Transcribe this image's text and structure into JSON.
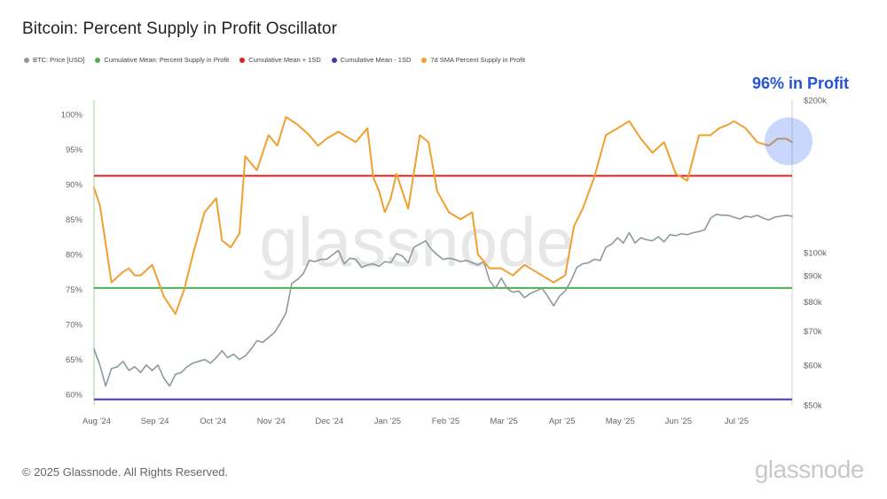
{
  "header": {
    "title": "Bitcoin: Percent Supply in Profit Oscillator"
  },
  "legend": [
    {
      "label": "BTC: Price [USD]",
      "color": "#8c9a9e"
    },
    {
      "label": "Cumulative Mean: Percent Supply in Profit",
      "color": "#4caf50"
    },
    {
      "label": "Cumulative Mean + 1SD",
      "color": "#e02020"
    },
    {
      "label": "Cumulative Mean - 1SD",
      "color": "#4a35a8"
    },
    {
      "label": "7d SMA Percent Supply in Profit",
      "color": "#f0a030"
    }
  ],
  "callout": "96% in Profit",
  "watermark": "glassnode",
  "footer": {
    "copyright": "© 2025 Glassnode. All Rights Reserved.",
    "logo": "glassnode"
  },
  "chart_data": {
    "type": "line",
    "title": "Bitcoin: Percent Supply in Profit Oscillator",
    "x_tick_labels": [
      "Aug '24",
      "Sep '24",
      "Oct '24",
      "Nov '24",
      "Dec '24",
      "Jan '25",
      "Feb '25",
      "Mar '25",
      "Apr '25",
      "May '25",
      "Jun '25",
      "Jul '25"
    ],
    "y_left": {
      "ticks": [
        60,
        65,
        70,
        75,
        80,
        85,
        90,
        95,
        100
      ],
      "tick_labels": [
        "60%",
        "65%",
        "70%",
        "75%",
        "80%",
        "85%",
        "90%",
        "95%",
        "100%"
      ],
      "range": [
        58.5,
        102
      ]
    },
    "y_right": {
      "scale": "log",
      "ticks": [
        50000,
        60000,
        70000,
        80000,
        90000,
        100000,
        200000
      ],
      "tick_labels": [
        "$50k",
        "$60k",
        "$70k",
        "$80k",
        "$90k",
        "$100k",
        "$200k"
      ],
      "range": [
        50000,
        200000
      ]
    },
    "horizontal_lines": [
      {
        "name": "Cumulative Mean: Percent Supply in Profit",
        "value": 75.2,
        "color": "#4caf50"
      },
      {
        "name": "Cumulative Mean + 1SD",
        "value": 91.2,
        "color": "#e02020"
      },
      {
        "name": "Cumulative Mean - 1SD",
        "value": 59.3,
        "color": "#4a35a8"
      }
    ],
    "series": [
      {
        "name": "7d SMA Percent Supply in Profit",
        "axis": "left",
        "color": "#f0a030",
        "x": [
          0,
          0.1,
          0.3,
          0.5,
          0.6,
          0.7,
          0.8,
          1.0,
          1.2,
          1.4,
          1.55,
          1.7,
          1.9,
          2.1,
          2.2,
          2.35,
          2.5,
          2.6,
          2.8,
          3.0,
          3.15,
          3.3,
          3.5,
          3.7,
          3.85,
          4.0,
          4.2,
          4.5,
          4.7,
          4.8,
          4.9,
          5.0,
          5.1,
          5.2,
          5.4,
          5.6,
          5.75,
          5.9,
          6.1,
          6.3,
          6.5,
          6.6,
          6.8,
          7.0,
          7.2,
          7.4,
          7.7,
          7.9,
          8.1,
          8.25,
          8.4,
          8.6,
          8.8,
          9.0,
          9.2,
          9.4,
          9.6,
          9.8,
          10.0,
          10.2,
          10.4,
          10.6,
          10.75,
          10.9,
          11.0,
          11.2,
          11.4,
          11.6,
          11.75,
          11.9,
          12.0
        ],
        "values": [
          89.5,
          87.0,
          76.0,
          77.5,
          78.0,
          77.0,
          77.0,
          78.5,
          74.0,
          71.5,
          75.0,
          80.0,
          86.0,
          88.0,
          82.0,
          81.0,
          83.0,
          94.0,
          92.0,
          97.0,
          95.5,
          99.6,
          98.5,
          97.0,
          95.5,
          96.5,
          97.5,
          96.0,
          98.0,
          91.0,
          89.0,
          86.0,
          88.0,
          91.5,
          86.5,
          97.0,
          96.0,
          89.0,
          86.0,
          85.0,
          86.0,
          80.0,
          78.0,
          78.0,
          77.0,
          78.5,
          77.0,
          76.0,
          77.0,
          84.0,
          86.5,
          91.0,
          97.0,
          98.0,
          99.0,
          96.5,
          94.5,
          96.0,
          91.5,
          90.5,
          97.0,
          97.0,
          98.0,
          98.5,
          99.0,
          98.0,
          96.0,
          95.5,
          96.5,
          96.5,
          96.0
        ]
      },
      {
        "name": "BTC: Price [USD]",
        "axis": "right",
        "color": "#8c9a9e",
        "x": [
          0,
          0.1,
          0.2,
          0.3,
          0.4,
          0.5,
          0.6,
          0.7,
          0.8,
          0.9,
          1.0,
          1.1,
          1.2,
          1.3,
          1.4,
          1.5,
          1.6,
          1.7,
          1.8,
          1.9,
          2.0,
          2.1,
          2.2,
          2.3,
          2.4,
          2.5,
          2.6,
          2.7,
          2.8,
          2.9,
          3.0,
          3.1,
          3.2,
          3.3,
          3.4,
          3.5,
          3.6,
          3.7,
          3.8,
          3.9,
          4.0,
          4.1,
          4.2,
          4.3,
          4.4,
          4.5,
          4.6,
          4.7,
          4.8,
          4.9,
          5.0,
          5.1,
          5.2,
          5.3,
          5.4,
          5.5,
          5.6,
          5.7,
          5.8,
          5.9,
          6.0,
          6.1,
          6.2,
          6.3,
          6.4,
          6.5,
          6.6,
          6.7,
          6.8,
          6.9,
          7.0,
          7.1,
          7.2,
          7.3,
          7.4,
          7.5,
          7.6,
          7.7,
          7.8,
          7.9,
          8.0,
          8.1,
          8.2,
          8.3,
          8.4,
          8.5,
          8.6,
          8.7,
          8.8,
          8.9,
          9.0,
          9.1,
          9.2,
          9.3,
          9.4,
          9.5,
          9.6,
          9.7,
          9.8,
          9.9,
          10.0,
          10.1,
          10.2,
          10.3,
          10.4,
          10.5,
          10.6,
          10.7,
          10.8,
          10.9,
          11.0,
          11.1,
          11.2,
          11.3,
          11.4,
          11.5,
          11.6,
          11.7,
          11.8,
          11.9,
          12.0
        ],
        "values": [
          64500,
          60000,
          54500,
          59000,
          59500,
          61000,
          58500,
          59500,
          58000,
          60000,
          58500,
          60000,
          56500,
          54500,
          57500,
          58000,
          59500,
          60500,
          61000,
          61500,
          60500,
          62000,
          64000,
          62000,
          63000,
          61500,
          62500,
          64500,
          67000,
          66500,
          68000,
          69500,
          72500,
          76000,
          87000,
          88500,
          91000,
          96500,
          96000,
          97000,
          97000,
          99000,
          101000,
          95000,
          97500,
          97000,
          93500,
          94500,
          95000,
          94000,
          96000,
          95500,
          99500,
          98500,
          95500,
          102500,
          104000,
          105500,
          101500,
          99000,
          97000,
          97500,
          97000,
          96000,
          96500,
          95500,
          94500,
          96000,
          88000,
          85000,
          89000,
          85000,
          83500,
          84000,
          81500,
          83000,
          84000,
          85000,
          82000,
          78500,
          82000,
          84000,
          88000,
          93500,
          95000,
          95500,
          97000,
          96500,
          102500,
          104000,
          107000,
          104500,
          109500,
          104500,
          107000,
          106000,
          105500,
          107500,
          105000,
          108500,
          108000,
          109000,
          108500,
          109500,
          110000,
          111000,
          117000,
          119000,
          118500,
          118500,
          117500,
          116500,
          118000,
          117500,
          118500,
          117000,
          116000,
          117500,
          118000,
          118500,
          118000
        ]
      }
    ]
  }
}
